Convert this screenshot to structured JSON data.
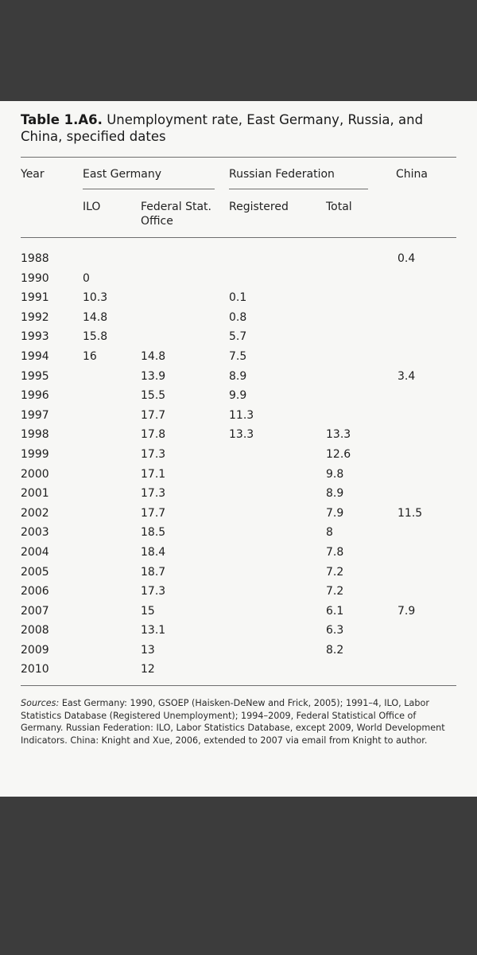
{
  "table": {
    "title_label": "Table 1.A6.",
    "title_text": "Unemployment rate, East Germany, Russia, and China, specified dates",
    "headers": {
      "year": "Year",
      "east_germany": "East Germany",
      "russian_federation": "Russian Federation",
      "china": "China",
      "ilo": "ILO",
      "federal_stat_line1": "Federal Stat.",
      "federal_stat_line2": "Office",
      "registered": "Registered",
      "total": "Total"
    },
    "rows": [
      {
        "year": "1988",
        "ilo": "",
        "fso": "",
        "registered": "",
        "total": "",
        "china": "0.4"
      },
      {
        "year": "1990",
        "ilo": "0",
        "fso": "",
        "registered": "",
        "total": "",
        "china": ""
      },
      {
        "year": "1991",
        "ilo": "10.3",
        "fso": "",
        "registered": "0.1",
        "total": "",
        "china": ""
      },
      {
        "year": "1992",
        "ilo": "14.8",
        "fso": "",
        "registered": "0.8",
        "total": "",
        "china": ""
      },
      {
        "year": "1993",
        "ilo": "15.8",
        "fso": "",
        "registered": "5.7",
        "total": "",
        "china": ""
      },
      {
        "year": "1994",
        "ilo": "16",
        "fso": "14.8",
        "registered": "7.5",
        "total": "",
        "china": ""
      },
      {
        "year": "1995",
        "ilo": "",
        "fso": "13.9",
        "registered": "8.9",
        "total": "",
        "china": "3.4"
      },
      {
        "year": "1996",
        "ilo": "",
        "fso": "15.5",
        "registered": "9.9",
        "total": "",
        "china": ""
      },
      {
        "year": "1997",
        "ilo": "",
        "fso": "17.7",
        "registered": "11.3",
        "total": "",
        "china": ""
      },
      {
        "year": "1998",
        "ilo": "",
        "fso": "17.8",
        "registered": "13.3",
        "total": "13.3",
        "china": ""
      },
      {
        "year": "1999",
        "ilo": "",
        "fso": "17.3",
        "registered": "",
        "total": "12.6",
        "china": ""
      },
      {
        "year": "2000",
        "ilo": "",
        "fso": "17.1",
        "registered": "",
        "total": "9.8",
        "china": ""
      },
      {
        "year": "2001",
        "ilo": "",
        "fso": "17.3",
        "registered": "",
        "total": "8.9",
        "china": ""
      },
      {
        "year": "2002",
        "ilo": "",
        "fso": "17.7",
        "registered": "",
        "total": "7.9",
        "china": "11.5"
      },
      {
        "year": "2003",
        "ilo": "",
        "fso": "18.5",
        "registered": "",
        "total": "8",
        "china": ""
      },
      {
        "year": "2004",
        "ilo": "",
        "fso": "18.4",
        "registered": "",
        "total": "7.8",
        "china": ""
      },
      {
        "year": "2005",
        "ilo": "",
        "fso": "18.7",
        "registered": "",
        "total": "7.2",
        "china": ""
      },
      {
        "year": "2006",
        "ilo": "",
        "fso": "17.3",
        "registered": "",
        "total": "7.2",
        "china": ""
      },
      {
        "year": "2007",
        "ilo": "",
        "fso": "15",
        "registered": "",
        "total": "6.1",
        "china": "7.9"
      },
      {
        "year": "2008",
        "ilo": "",
        "fso": "13.1",
        "registered": "",
        "total": "6.3",
        "china": ""
      },
      {
        "year": "2009",
        "ilo": "",
        "fso": "13",
        "registered": "",
        "total": "8.2",
        "china": ""
      },
      {
        "year": "2010",
        "ilo": "",
        "fso": "12",
        "registered": "",
        "total": "",
        "china": ""
      }
    ],
    "sources_label": "Sources:",
    "sources_text": "East Germany: 1990, GSOEP (Haisken-DeNew and Frick, 2005); 1991–4, ILO, Labor Statistics Database (Registered Unemployment); 1994–2009, Federal Statistical Office of Germany. Russian Federation: ILO, Labor Statistics Database, except 2009, World Development Indicators. China: Knight and Xue, 2006, extended to 2007 via email from Knight to author."
  }
}
